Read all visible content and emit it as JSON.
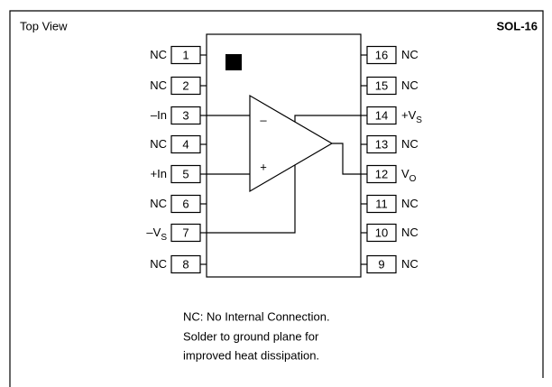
{
  "header": {
    "title": "Top View",
    "package": "SOL-16"
  },
  "pins": [
    {
      "number": "1",
      "label": "NC"
    },
    {
      "number": "2",
      "label": "NC"
    },
    {
      "number": "3",
      "label": "–In"
    },
    {
      "number": "4",
      "label": "NC"
    },
    {
      "number": "5",
      "label": "+In"
    },
    {
      "number": "6",
      "label": "NC"
    },
    {
      "number": "7",
      "label": "–V",
      "sub": "S"
    },
    {
      "number": "8",
      "label": "NC"
    },
    {
      "number": "9",
      "label": "NC"
    },
    {
      "number": "10",
      "label": "NC"
    },
    {
      "number": "11",
      "label": "NC"
    },
    {
      "number": "12",
      "label": "V",
      "sub": "O"
    },
    {
      "number": "13",
      "label": "NC"
    },
    {
      "number": "14",
      "label": "+V",
      "sub": "S"
    },
    {
      "number": "15",
      "label": "NC"
    },
    {
      "number": "16",
      "label": "NC"
    }
  ],
  "amp": {
    "minus": "–",
    "plus": "+"
  },
  "notes": [
    "NC: No Internal Connection.",
    "Solder to ground plane for",
    "improved heat dissipation."
  ]
}
